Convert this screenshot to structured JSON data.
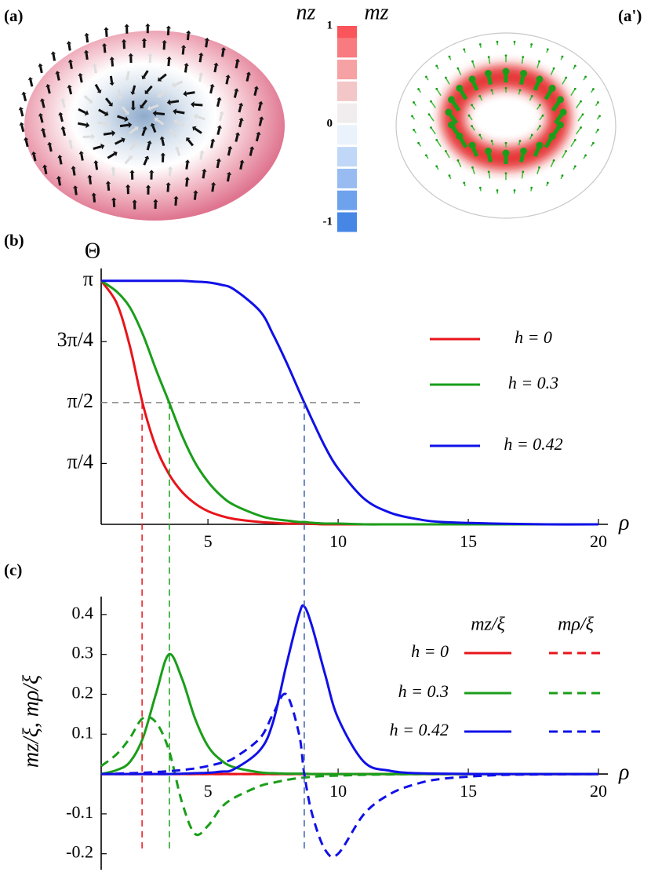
{
  "panels": [
    "(a)",
    "(a')",
    "(b)",
    "(c)"
  ],
  "colorbar": {
    "labels": [
      "nz",
      "mz"
    ],
    "ticks": [
      1,
      0,
      -1
    ],
    "clim": [
      -1,
      1
    ]
  },
  "chart_data": [
    {
      "type": "line",
      "ylabel": "Θ",
      "xlabel": "ρ",
      "x": [
        0.9,
        1.5,
        2,
        2.5,
        3,
        3.5,
        4,
        4.5,
        5,
        5.5,
        6,
        7,
        7.5,
        8,
        8.5,
        8.7,
        9,
        9.5,
        10,
        11,
        12,
        13,
        14,
        16,
        18,
        20
      ],
      "xlim": [
        0.9,
        20.36
      ],
      "ylim": [
        0,
        3.3
      ],
      "xticks": [
        5,
        10,
        15,
        20
      ],
      "yticks": [
        {
          "value": 0.7854,
          "label": "π/4"
        },
        {
          "value": 1.5708,
          "label": "π/2"
        },
        {
          "value": 2.3562,
          "label": "3π/4"
        },
        {
          "value": 3.1416,
          "label": "π"
        }
      ],
      "hline": {
        "value": 1.5708,
        "xmax": 11,
        "color": "#888888"
      },
      "guides_x": [
        {
          "value": 2.47,
          "color": "#e8141a"
        },
        {
          "value": 3.52,
          "color": "#1a9e1a"
        },
        {
          "value": 8.7,
          "color": "#3a5fb0"
        }
      ],
      "series": [
        {
          "name": "h = 0",
          "color": "#e8141a",
          "values": [
            3.14,
            2.85,
            2.3,
            1.55,
            1.0,
            0.65,
            0.42,
            0.27,
            0.17,
            0.11,
            0.07,
            0.03,
            0.02,
            0.01,
            0.01,
            0.01,
            0.005,
            0,
            0,
            0,
            0,
            0,
            0,
            0,
            0,
            0
          ]
        },
        {
          "name": "h = 0.3",
          "color": "#1a9e1a",
          "values": [
            3.14,
            3.0,
            2.8,
            2.45,
            2.0,
            1.58,
            1.15,
            0.8,
            0.55,
            0.37,
            0.25,
            0.11,
            0.07,
            0.05,
            0.03,
            0.03,
            0.02,
            0.01,
            0.01,
            0,
            0,
            0,
            0,
            0,
            0,
            0
          ]
        },
        {
          "name": "h = 0.42",
          "color": "#1010e8",
          "values": [
            3.14,
            3.14,
            3.14,
            3.14,
            3.14,
            3.14,
            3.14,
            3.13,
            3.12,
            3.09,
            3.03,
            2.75,
            2.45,
            2.1,
            1.72,
            1.57,
            1.35,
            1.0,
            0.72,
            0.33,
            0.15,
            0.07,
            0.03,
            0.01,
            0,
            0
          ]
        }
      ]
    },
    {
      "type": "line",
      "ylabel": "mz/ξ, mρ/ξ",
      "xlabel": "ρ",
      "x": [
        0.9,
        1.5,
        2,
        2.5,
        3,
        3.5,
        4,
        4.5,
        5,
        5.5,
        6,
        7,
        7.5,
        8,
        8.5,
        8.7,
        9,
        9.5,
        10,
        11,
        12,
        13,
        14,
        16,
        18,
        20
      ],
      "xlim": [
        0.9,
        20.36
      ],
      "ylim": [
        -0.24,
        0.445
      ],
      "xticks": [
        5,
        10,
        15,
        20
      ],
      "yticks": [
        -0.2,
        -0.1,
        0.1,
        0.2,
        0.3,
        0.4
      ],
      "legend_columns": [
        "mz/ξ",
        "mρ/ξ"
      ],
      "legend_rows": [
        "h = 0",
        "h = 0.3",
        "h = 0.42"
      ],
      "series": [
        {
          "row": 0,
          "column": 0,
          "dashed": false,
          "color": "#e8141a",
          "values": [
            0,
            0,
            0,
            0,
            0,
            0,
            0,
            0,
            0,
            0,
            0,
            0,
            0,
            0,
            0,
            0,
            0,
            0,
            0,
            0,
            0,
            0,
            0,
            0,
            0,
            0
          ]
        },
        {
          "row": 0,
          "column": 1,
          "dashed": true,
          "color": "#e8141a",
          "values": [
            0,
            0,
            0,
            0,
            0,
            0,
            0,
            0,
            0,
            0,
            0,
            0,
            0,
            0,
            0,
            0,
            0,
            0,
            0,
            0,
            0,
            0,
            0,
            0,
            0,
            0
          ]
        },
        {
          "row": 1,
          "column": 0,
          "dashed": false,
          "color": "#1a9e1a",
          "values": [
            0,
            0.01,
            0.03,
            0.09,
            0.2,
            0.3,
            0.24,
            0.14,
            0.07,
            0.035,
            0.017,
            0.004,
            0.002,
            0.001,
            0.001,
            0.001,
            0,
            0,
            0,
            0,
            0,
            0,
            0,
            0,
            0,
            0
          ]
        },
        {
          "row": 1,
          "column": 1,
          "dashed": true,
          "color": "#1a9e1a",
          "values": [
            0.02,
            0.05,
            0.09,
            0.14,
            0.13,
            0.06,
            -0.07,
            -0.15,
            -0.13,
            -0.085,
            -0.06,
            -0.03,
            -0.022,
            -0.015,
            -0.01,
            -0.009,
            -0.007,
            -0.005,
            -0.004,
            -0.002,
            -0.001,
            0,
            0,
            0,
            0,
            0
          ]
        },
        {
          "row": 2,
          "column": 0,
          "dashed": false,
          "color": "#1010e8",
          "values": [
            0,
            0,
            0,
            0,
            0,
            0,
            0.001,
            0.002,
            0.003,
            0.006,
            0.012,
            0.06,
            0.13,
            0.27,
            0.4,
            0.42,
            0.37,
            0.25,
            0.14,
            0.03,
            0.008,
            0.002,
            0.001,
            0,
            0,
            0
          ]
        },
        {
          "row": 2,
          "column": 1,
          "dashed": true,
          "color": "#1010e8",
          "values": [
            0,
            0.001,
            0.002,
            0.003,
            0.005,
            0.007,
            0.01,
            0.014,
            0.02,
            0.028,
            0.04,
            0.09,
            0.15,
            0.2,
            0.1,
            0.0,
            -0.1,
            -0.19,
            -0.2,
            -0.1,
            -0.05,
            -0.025,
            -0.012,
            -0.003,
            -0.001,
            0
          ]
        }
      ]
    }
  ]
}
